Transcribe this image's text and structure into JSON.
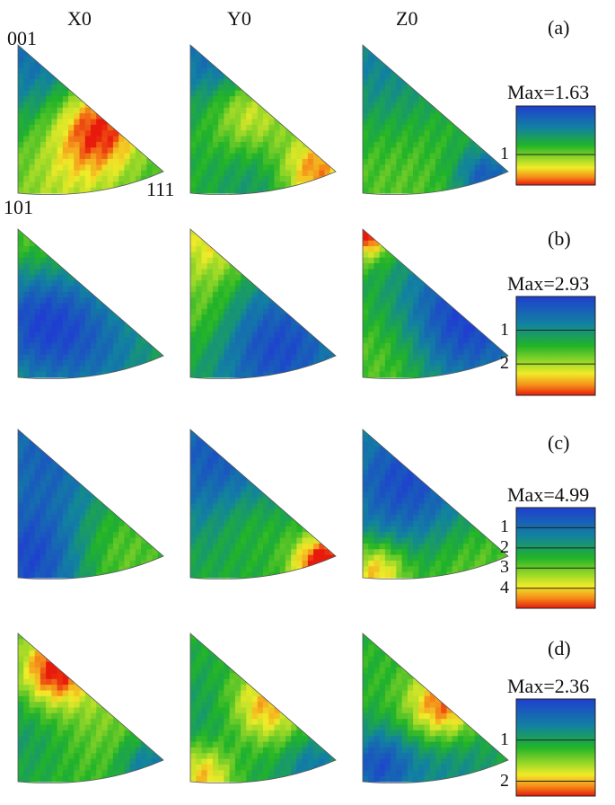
{
  "columns": [
    "X0",
    "Y0",
    "Z0"
  ],
  "corners": {
    "top": "001",
    "bottom_left": "101",
    "bottom_right": "111"
  },
  "colors": {
    "low": "#1f3fd0",
    "mid": "#22b428",
    "high": "#e81a0c"
  },
  "rows": [
    {
      "tag": "(a)",
      "max_label": "Max=1.63",
      "max": 1.63,
      "ticks": [
        {
          "label": "1",
          "value": 1
        }
      ],
      "spots": [
        [
          {
            "u": 0.12,
            "v": 0.08,
            "r": 0.32,
            "a": 0.6
          },
          {
            "u": 0.55,
            "v": 0.55,
            "r": 0.22,
            "a": -1.0
          },
          {
            "u": 0.3,
            "v": 0.95,
            "r": 0.3,
            "a": -0.35
          }
        ],
        [
          {
            "u": 0.2,
            "v": 0.05,
            "r": 0.3,
            "a": 0.7
          },
          {
            "u": 0.4,
            "v": 0.45,
            "r": 0.2,
            "a": -0.7
          },
          {
            "u": 0.85,
            "v": 0.85,
            "r": 0.18,
            "a": -0.9
          },
          {
            "u": 0.5,
            "v": 0.9,
            "r": 0.25,
            "a": 0.3
          }
        ],
        [
          {
            "u": 0.1,
            "v": 0.1,
            "r": 0.4,
            "a": 0.45
          },
          {
            "u": 0.85,
            "v": 0.9,
            "r": 0.15,
            "a": 0.8
          },
          {
            "u": 0.2,
            "v": 0.8,
            "r": 0.35,
            "a": -0.2
          }
        ]
      ]
    },
    {
      "tag": "(b)",
      "max_label": "Max=2.93",
      "max": 2.93,
      "ticks": [
        {
          "label": "1",
          "value": 1
        },
        {
          "label": "2",
          "value": 2
        }
      ],
      "spots": [
        [
          {
            "u": 0.15,
            "v": 0.1,
            "r": 0.25,
            "a": -0.3
          },
          {
            "u": 0.15,
            "v": 0.6,
            "r": 0.3,
            "a": 0.9
          },
          {
            "u": 0.6,
            "v": 0.85,
            "r": 0.3,
            "a": 0.4
          }
        ],
        [
          {
            "u": 0.15,
            "v": 0.08,
            "r": 0.22,
            "a": -0.6
          },
          {
            "u": 0.6,
            "v": 0.8,
            "r": 0.35,
            "a": 0.9
          },
          {
            "u": 0.1,
            "v": 0.6,
            "r": 0.2,
            "a": -0.3
          }
        ],
        [
          {
            "u": 0.02,
            "v": 0.02,
            "r": 0.12,
            "a": -1.2
          },
          {
            "u": 0.7,
            "v": 0.6,
            "r": 0.35,
            "a": 1.0
          },
          {
            "u": 0.2,
            "v": 0.85,
            "r": 0.25,
            "a": -0.3
          }
        ]
      ]
    },
    {
      "tag": "(c)",
      "max_label": "Max=4.99",
      "max": 4.99,
      "ticks": [
        {
          "label": "1",
          "value": 1
        },
        {
          "label": "2",
          "value": 2
        },
        {
          "label": "3",
          "value": 3
        },
        {
          "label": "4",
          "value": 4
        }
      ],
      "spots": [
        [
          {
            "u": 0.2,
            "v": 0.1,
            "r": 0.35,
            "a": 0.7
          },
          {
            "u": 0.1,
            "v": 0.9,
            "r": 0.3,
            "a": 0.9
          },
          {
            "u": 0.6,
            "v": 0.85,
            "r": 0.25,
            "a": -0.3
          }
        ],
        [
          {
            "u": 0.2,
            "v": 0.2,
            "r": 0.4,
            "a": 0.8
          },
          {
            "u": 0.92,
            "v": 0.92,
            "r": 0.15,
            "a": -1.3
          },
          {
            "u": 0.4,
            "v": 0.6,
            "r": 0.2,
            "a": -0.3
          }
        ],
        [
          {
            "u": 0.3,
            "v": 0.35,
            "r": 0.35,
            "a": 0.9
          },
          {
            "u": 0.1,
            "v": 0.95,
            "r": 0.14,
            "a": -0.8
          },
          {
            "u": 0.7,
            "v": 0.9,
            "r": 0.25,
            "a": -0.25
          }
        ]
      ]
    },
    {
      "tag": "(d)",
      "max_label": "Max=2.36",
      "max": 2.36,
      "ticks": [
        {
          "label": "1",
          "value": 1
        },
        {
          "label": "2",
          "value": 2
        }
      ],
      "spots": [
        [
          {
            "u": 0.25,
            "v": 0.25,
            "r": 0.18,
            "a": -1.1
          },
          {
            "u": 0.1,
            "v": 0.6,
            "r": 0.3,
            "a": 0.3
          },
          {
            "u": 0.55,
            "v": 0.6,
            "r": 0.3,
            "a": -0.3
          },
          {
            "u": 0.9,
            "v": 0.9,
            "r": 0.15,
            "a": 0.6
          }
        ],
        [
          {
            "u": 0.5,
            "v": 0.5,
            "r": 0.2,
            "a": -1.0
          },
          {
            "u": 0.1,
            "v": 0.95,
            "r": 0.15,
            "a": -0.8
          },
          {
            "u": 0.3,
            "v": 0.6,
            "r": 0.3,
            "a": 0.4
          },
          {
            "u": 0.85,
            "v": 0.9,
            "r": 0.15,
            "a": 0.5
          }
        ],
        [
          {
            "u": 0.55,
            "v": 0.5,
            "r": 0.18,
            "a": -1.0
          },
          {
            "u": 0.1,
            "v": 0.9,
            "r": 0.18,
            "a": 0.8
          },
          {
            "u": 0.6,
            "v": 0.85,
            "r": 0.25,
            "a": 0.4
          }
        ]
      ]
    }
  ]
}
